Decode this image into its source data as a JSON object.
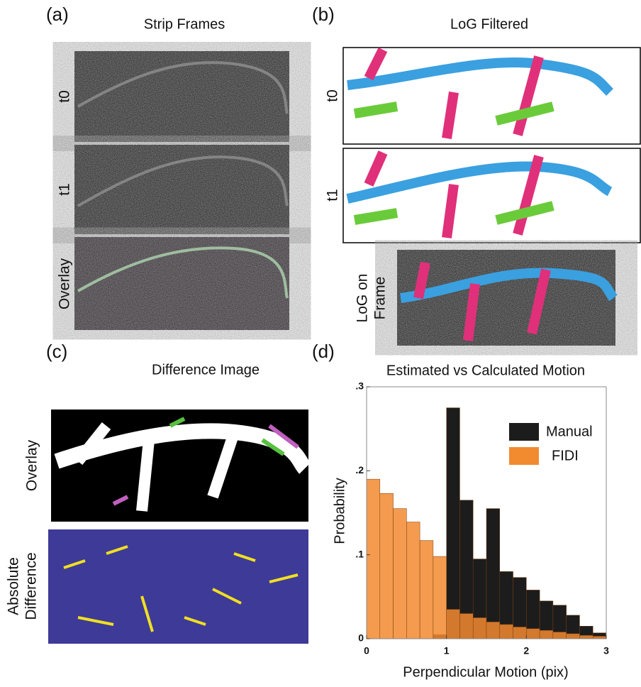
{
  "panels": {
    "a": {
      "label": "(a)",
      "title": "Strip Frames",
      "rows": [
        "t0",
        "t1",
        "Overlay"
      ]
    },
    "b": {
      "label": "(b)",
      "title": "LoG Filtered",
      "rows": [
        "t0",
        "t1",
        [
          "LoG on",
          "Frame"
        ]
      ]
    },
    "c": {
      "label": "(c)",
      "title": "Difference Image",
      "rows": [
        "Overlay",
        [
          "Absolute",
          "Difference"
        ]
      ]
    },
    "d": {
      "label": "(d)"
    }
  },
  "chart_data": {
    "type": "histogram",
    "title": "Estimated vs Calculated Motion",
    "x_label": "Perpendicular Motion (pix)",
    "y_label": "Probability",
    "bins": [
      0,
      0.1667,
      0.3333,
      0.5,
      0.6667,
      0.8333,
      1,
      1.1667,
      1.3333,
      1.5,
      1.6667,
      1.8333,
      2,
      2.1667,
      2.3333,
      2.5,
      2.6667,
      2.8333,
      3
    ],
    "series": [
      {
        "name": "Manual",
        "color": "#1c1c1c",
        "values": [
          0,
          0,
          0,
          0,
          0,
          0.005,
          0.275,
          0.165,
          0.095,
          0.155,
          0.08,
          0.073,
          0.058,
          0.045,
          0.04,
          0.028,
          0.015,
          0.007
        ]
      },
      {
        "name": "FIDI",
        "color": "#f28a30",
        "values": [
          0.19,
          0.173,
          0.155,
          0.139,
          0.117,
          0.098,
          0.035,
          0.03,
          0.025,
          0.02,
          0.017,
          0.014,
          0.012,
          0.01,
          0.008,
          0.006,
          0.004,
          0.003
        ]
      }
    ],
    "xlim": [
      0,
      3
    ],
    "ylim": [
      0,
      0.3
    ],
    "xticks": [
      0,
      1,
      2,
      3
    ],
    "yticks": [
      0,
      {
        "value": 0.1,
        "label": ".1"
      },
      {
        "value": 0.2,
        "label": ".2"
      },
      {
        "value": 0.3,
        "label": ".3"
      }
    ],
    "legend": "upper right"
  }
}
